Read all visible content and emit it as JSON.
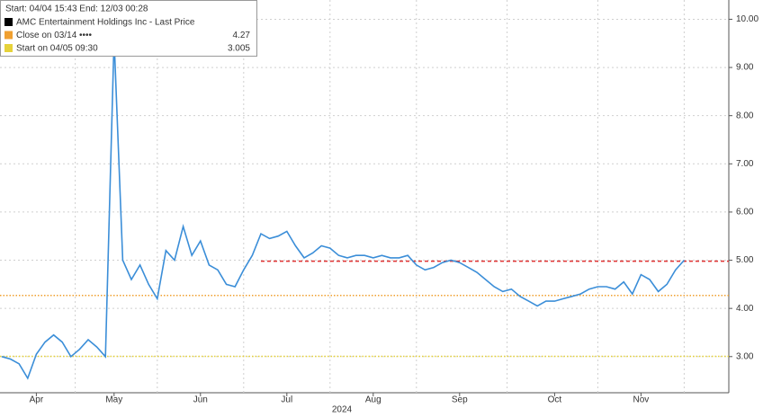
{
  "chart_data": {
    "type": "line",
    "header": "Start: 04/04 15:43 End: 12/03 00:28",
    "x_axis_year": "2024",
    "categories": [
      null,
      null,
      null,
      null,
      "Apr",
      null,
      null,
      null,
      null,
      null,
      null,
      null,
      null,
      "May",
      null,
      null,
      null,
      null,
      null,
      null,
      null,
      null,
      null,
      "Jun",
      null,
      null,
      null,
      null,
      null,
      null,
      null,
      null,
      null,
      "Jul",
      null,
      null,
      null,
      null,
      null,
      null,
      null,
      null,
      null,
      "Aug",
      null,
      null,
      null,
      null,
      null,
      null,
      null,
      null,
      null,
      "Sep",
      null,
      null,
      null,
      null,
      null,
      null,
      null,
      null,
      null,
      null,
      "Oct",
      null,
      null,
      null,
      null,
      null,
      null,
      null,
      null,
      null,
      "Nov",
      null,
      null,
      null,
      null,
      null
    ],
    "series": [
      {
        "name": "AMC Entertainment Holdings Inc - Last Price",
        "color": "#3b8ed8",
        "legend_color": "#000000",
        "values": [
          3.0,
          2.95,
          2.85,
          2.55,
          3.05,
          3.3,
          3.45,
          3.3,
          3.0,
          3.15,
          3.35,
          3.2,
          3.0,
          9.6,
          5.0,
          4.6,
          4.9,
          4.5,
          4.2,
          5.2,
          5.0,
          5.7,
          5.1,
          5.4,
          4.9,
          4.8,
          4.5,
          4.45,
          4.8,
          5.1,
          5.55,
          5.45,
          5.5,
          5.6,
          5.3,
          5.05,
          5.15,
          5.3,
          5.25,
          5.1,
          5.05,
          5.1,
          5.1,
          5.05,
          5.1,
          5.05,
          5.05,
          5.1,
          4.9,
          4.8,
          4.85,
          4.95,
          5.0,
          4.95,
          4.85,
          4.75,
          4.6,
          4.45,
          4.35,
          4.4,
          4.25,
          4.15,
          4.05,
          4.15,
          4.15,
          4.2,
          4.25,
          4.3,
          4.4,
          4.45,
          4.45,
          4.4,
          4.55,
          4.3,
          4.7,
          4.6,
          4.35,
          4.5,
          4.8,
          5.0
        ]
      }
    ],
    "reference_lines": [
      {
        "name": "Close on 03/14 ••••",
        "value": 4.27,
        "color": "#f0a030"
      },
      {
        "name": "Start on 04/05 09:30",
        "value": 3.005,
        "color": "#e6d23a"
      }
    ],
    "target_line": {
      "value": 4.98,
      "color": "#e03030"
    },
    "ylim": [
      2.25,
      10.4
    ],
    "yticks": [
      {
        "value": 3,
        "label": "3.00"
      },
      {
        "value": 4,
        "label": "4.00"
      },
      {
        "value": 5,
        "label": "5.00"
      },
      {
        "value": 6,
        "label": "6.00"
      },
      {
        "value": 7,
        "label": "7.00"
      },
      {
        "value": 8,
        "label": "8.00"
      },
      {
        "value": 9,
        "label": "9.00"
      },
      {
        "value": 10,
        "label": "10.00"
      }
    ],
    "grid": true
  }
}
